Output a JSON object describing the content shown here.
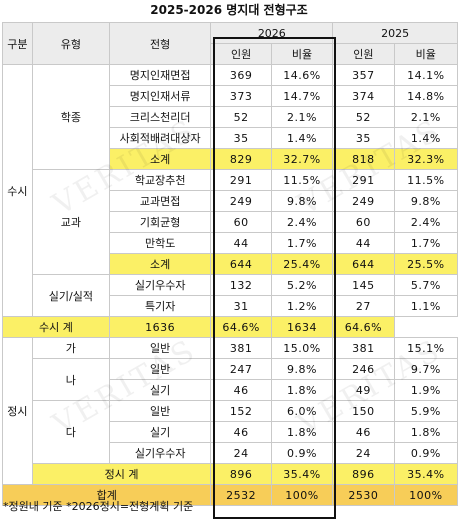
{
  "title": "2025-2026 명지대 전형구조",
  "header": {
    "gubun": "구분",
    "yuhyeong": "유형",
    "jeonhyeong": "전형",
    "year_a": "2026",
    "year_b": "2025",
    "count": "인원",
    "ratio": "비율"
  },
  "groups": {
    "susi": "수시",
    "jeongsi": "정시",
    "hakjong": "학종",
    "gyogwa": "교과",
    "silgi": "실기/실적",
    "ga": "가",
    "na": "나",
    "da": "다"
  },
  "rows": [
    {
      "name": "명지인재면접",
      "c26": "369",
      "r26": "14.6%",
      "c25": "357",
      "r25": "14.1%"
    },
    {
      "name": "명지인재서류",
      "c26": "373",
      "r26": "14.7%",
      "c25": "374",
      "r25": "14.8%"
    },
    {
      "name": "크리스천리더",
      "c26": "52",
      "r26": "2.1%",
      "c25": "52",
      "r25": "2.1%"
    },
    {
      "name": "사회적배려대상자",
      "c26": "35",
      "r26": "1.4%",
      "c25": "35",
      "r25": "1.4%"
    },
    {
      "name": "소계",
      "c26": "829",
      "r26": "32.7%",
      "c25": "818",
      "r25": "32.3%"
    },
    {
      "name": "학교장추천",
      "c26": "291",
      "r26": "11.5%",
      "c25": "291",
      "r25": "11.5%"
    },
    {
      "name": "교과면접",
      "c26": "249",
      "r26": "9.8%",
      "c25": "249",
      "r25": "9.8%"
    },
    {
      "name": "기회균형",
      "c26": "60",
      "r26": "2.4%",
      "c25": "60",
      "r25": "2.4%"
    },
    {
      "name": "만학도",
      "c26": "44",
      "r26": "1.7%",
      "c25": "44",
      "r25": "1.7%"
    },
    {
      "name": "소계",
      "c26": "644",
      "r26": "25.4%",
      "c25": "644",
      "r25": "25.5%"
    },
    {
      "name": "실기우수자",
      "c26": "132",
      "r26": "5.2%",
      "c25": "145",
      "r25": "5.7%"
    },
    {
      "name": "특기자",
      "c26": "31",
      "r26": "1.2%",
      "c25": "27",
      "r25": "1.1%"
    },
    {
      "name": "수시 계",
      "c26": "1636",
      "r26": "64.6%",
      "c25": "1634",
      "r25": "64.6%"
    },
    {
      "name": "일반",
      "c26": "381",
      "r26": "15.0%",
      "c25": "381",
      "r25": "15.1%"
    },
    {
      "name": "일반",
      "c26": "247",
      "r26": "9.8%",
      "c25": "246",
      "r25": "9.7%"
    },
    {
      "name": "실기",
      "c26": "46",
      "r26": "1.8%",
      "c25": "49",
      "r25": "1.9%"
    },
    {
      "name": "일반",
      "c26": "152",
      "r26": "6.0%",
      "c25": "150",
      "r25": "5.9%"
    },
    {
      "name": "실기",
      "c26": "46",
      "r26": "1.8%",
      "c25": "46",
      "r25": "1.8%"
    },
    {
      "name": "실기우수자",
      "c26": "24",
      "r26": "0.9%",
      "c25": "24",
      "r25": "0.9%"
    },
    {
      "name": "정시 계",
      "c26": "896",
      "r26": "35.4%",
      "c25": "896",
      "r25": "35.4%"
    },
    {
      "name": "합계",
      "c26": "2532",
      "r26": "100%",
      "c25": "2530",
      "r25": "100%"
    }
  ],
  "footnote": "*정원내 기준 *2026정시=전형계획 기준",
  "watermark": "VERITAS",
  "colors": {
    "highlight": "#fbf066",
    "total": "#f7cd58",
    "header_bg": "#ececec",
    "border": "#c9c9c9"
  }
}
